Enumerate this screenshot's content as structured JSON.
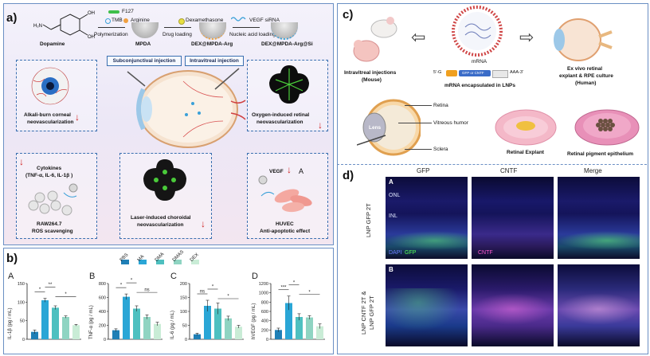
{
  "panel_a": {
    "letter": "a)",
    "synthesis": {
      "f127": "F127",
      "tmb": "TMB",
      "arginine": "Arginine",
      "dexamethasone": "Dexamethasone",
      "vegf_sirna": "VEGF siRNA",
      "dopamine": "Dopamine",
      "polymerization": "Polymerization",
      "mpda": "MPDA",
      "drug_loading": "Drug loading",
      "dex_mpda_arg": "DEX@MPDA-Arg",
      "nucleic_acid_loading": "Nucleic acid loading",
      "dex_mpda_arg_si": "DEX@MPDA-Arg@Si"
    },
    "routes": {
      "subconjunctival": "Subconjunctival injection",
      "intravitreal": "Intravitreal injection"
    },
    "boxes": {
      "alkali_line1": "Alkali-burn corneal",
      "alkali_line2": "neovascularization",
      "oxygen_line1": "Oxygen-induced retinal",
      "oxygen_line2": "neovascularization",
      "cytokines_line1": "Cytokines",
      "cytokines_line2": "(TNF-α, IL-6, IL-1β )",
      "raw_line1": "RAW264.7",
      "raw_line2": "ROS scavenging",
      "laser_line1": "Laser-induced choroidal",
      "laser_line2": "neovascularization",
      "vegf": "VEGF",
      "vegf_letter": "A",
      "huvec_line1": "HUVEC",
      "huvec_line2": "Anti-apoptotic effect"
    }
  },
  "panel_b": {
    "letter": "b)",
    "legend": [
      {
        "name": "PBS",
        "color": "#1f7fb6"
      },
      {
        "name": "MA",
        "color": "#2aa6d6"
      },
      {
        "name": "DMA",
        "color": "#4ec0c0"
      },
      {
        "name": "DMAS",
        "color": "#8fd4c2"
      },
      {
        "name": "DEX",
        "color": "#c9ecd6"
      }
    ]
  },
  "chart_data": [
    {
      "type": "bar",
      "title": "A",
      "ylabel": "IL-1β (pg / mL)",
      "categories": [
        "PBS",
        "MA",
        "DMA",
        "DMAS",
        "DEX"
      ],
      "values": [
        20,
        105,
        85,
        60,
        38
      ],
      "errors": [
        5,
        5,
        5,
        3,
        2
      ],
      "ylim": [
        0,
        150
      ],
      "yticks": [
        "0",
        "50",
        "100",
        "150"
      ],
      "significance": [
        "*",
        "**",
        "*"
      ]
    },
    {
      "type": "bar",
      "title": "B",
      "ylabel": "TNF-α (pg / mL)",
      "categories": [
        "PBS",
        "MA",
        "DMA",
        "DMAS",
        "DEX"
      ],
      "values": [
        130,
        610,
        440,
        320,
        220
      ],
      "errors": [
        20,
        40,
        40,
        30,
        25
      ],
      "ylim": [
        0,
        800
      ],
      "yticks": [
        "0",
        "200",
        "400",
        "600",
        "800"
      ],
      "significance": [
        "*",
        "*",
        "ns"
      ]
    },
    {
      "type": "bar",
      "title": "C",
      "ylabel": "IL-6 (pg / mL)",
      "categories": [
        "PBS",
        "MA",
        "DMA",
        "DMAS",
        "DEX"
      ],
      "values": [
        18,
        120,
        110,
        75,
        45
      ],
      "errors": [
        4,
        20,
        20,
        8,
        5
      ],
      "ylim": [
        0,
        200
      ],
      "yticks": [
        "0",
        "50",
        "100",
        "150",
        "200"
      ],
      "significance": [
        "ns",
        "*",
        "*"
      ]
    },
    {
      "type": "bar",
      "title": "D",
      "ylabel": "hVEGF (pg / mL)",
      "categories": [
        "PBS",
        "MA",
        "DMA",
        "DMAS",
        "DEX"
      ],
      "values": [
        200,
        780,
        480,
        470,
        280
      ],
      "errors": [
        40,
        150,
        70,
        40,
        50
      ],
      "ylim": [
        0,
        1200
      ],
      "yticks": [
        "0",
        "200",
        "400",
        "600",
        "800",
        "1000",
        "1200"
      ],
      "significance": [
        "***",
        "*",
        "*"
      ]
    }
  ],
  "panel_c": {
    "letter": "c)",
    "mrna": "mRNA",
    "five_prime": "5'-G",
    "gfp_cntf": "GFP or CNTF",
    "polya": "AAA-3'",
    "intravitreal_line1": "Intravitreal injections",
    "intravitreal_line2": "(Mouse)",
    "mrna_lnps": "mRNA encapsulated in LNPs",
    "exvivo_line1": "Ex vivo retinal",
    "exvivo_line2": "explant & RPE culture",
    "exvivo_line3": "(Human)",
    "lens": "Lens",
    "retina": "Retina",
    "vitreous": "Vitreous humor",
    "sclera": "Sclera",
    "retinal_explant": "Retinal Explant",
    "rpe": "Retinal pigment epithelium"
  },
  "panel_d": {
    "letter": "d)",
    "columns": [
      "GFP",
      "CNTF",
      "Merge"
    ],
    "row1_label": "LNP GFP 2T",
    "row2_label_line1": "LNP CNTF 2T &",
    "row2_label_line2": "LNP GFP 2T",
    "onl": "ONL",
    "inl": "INL",
    "row1_letter": "A",
    "row2_letter": "B",
    "dapi": "DAPI",
    "gfp": "GFP",
    "cntf": "CNTF"
  }
}
